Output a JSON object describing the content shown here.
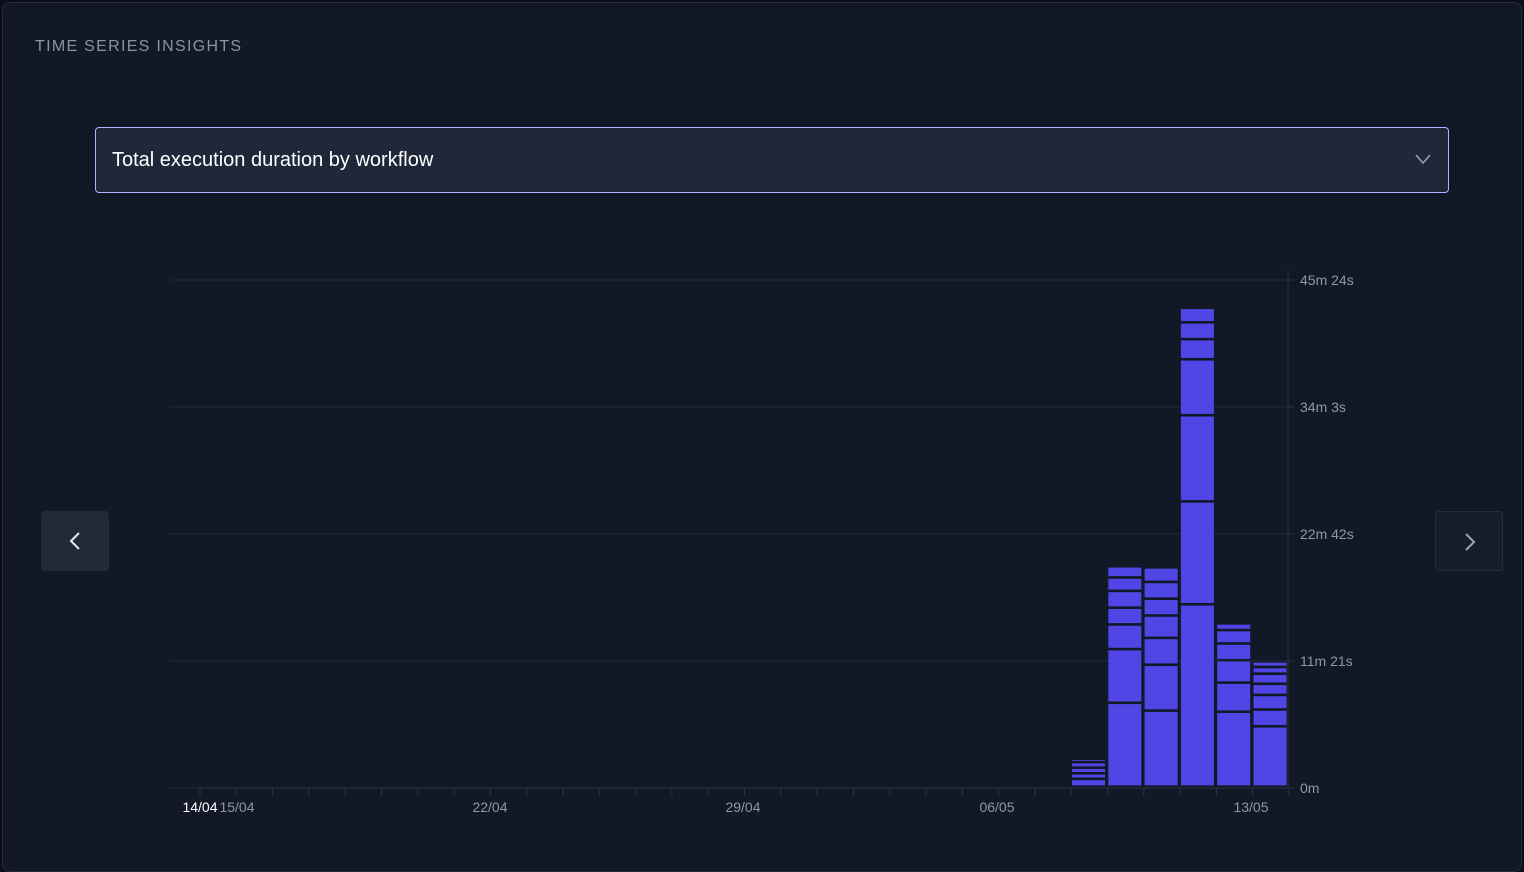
{
  "panel": {
    "title": "TIME SERIES INSIGHTS"
  },
  "metric_select": {
    "value": "Total execution duration by workflow",
    "icon": "chevron-down-icon"
  },
  "navigation": {
    "prev_icon": "chevron-left-icon",
    "next_icon": "chevron-right-icon"
  },
  "colors": {
    "bar": "#4f46e5",
    "grid": "#232a39",
    "axis": "#2a3242"
  },
  "chart_data": {
    "type": "bar",
    "stacked": true,
    "x_tick_labels": [
      "14/04",
      "15/04",
      "22/04",
      "29/04",
      "06/05",
      "13/05"
    ],
    "y_tick_labels": [
      "0m",
      "11m 21s",
      "22m 42s",
      "34m 3s",
      "45m 24s"
    ],
    "ylim": [
      0,
      45.4
    ],
    "y_unit": "minutes",
    "grid": true,
    "columns": [
      {
        "date": "09/05",
        "segments": [
          0.7,
          0.5,
          0.5,
          0.5,
          0.3
        ]
      },
      {
        "date": "10/05",
        "segments": [
          7.5,
          4.8,
          2.2,
          1.5,
          1.5,
          1.2,
          1.0
        ]
      },
      {
        "date": "11/05",
        "segments": [
          6.8,
          4.1,
          2.4,
          2.0,
          1.5,
          1.5,
          1.3
        ]
      },
      {
        "date": "12/05",
        "segments": [
          16.3,
          9.2,
          7.7,
          5.0,
          1.8,
          1.5,
          1.3
        ]
      },
      {
        "date": "13/05",
        "segments": [
          6.7,
          2.6,
          2.0,
          1.5,
          1.2,
          0.6
        ]
      },
      {
        "date": "14/05",
        "segments": [
          5.4,
          1.5,
          1.3,
          1.0,
          0.9,
          0.6,
          0.5
        ]
      }
    ]
  }
}
